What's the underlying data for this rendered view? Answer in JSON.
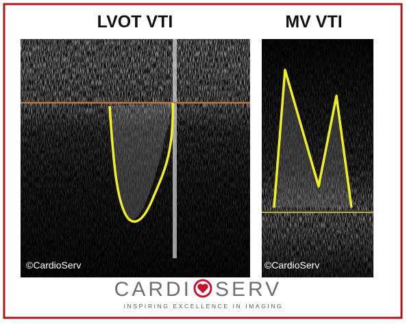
{
  "panels": [
    {
      "title": "LVOT VTI",
      "watermark": "©CardioServ"
    },
    {
      "title": "MV VTI",
      "watermark": "©CardioServ"
    }
  ],
  "logo": {
    "left": "CARDI",
    "right": "SERV",
    "tagline": "INSPIRING EXCELLENCE IN IMAGING"
  }
}
